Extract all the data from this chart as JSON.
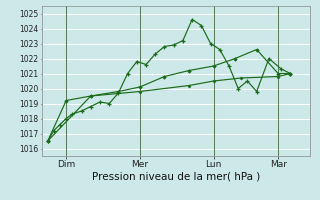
{
  "xlabel": "Pression niveau de la mer( hPa )",
  "bg_color": "#cce8e8",
  "grid_color": "#ffffff",
  "line_color": "#1a6b1a",
  "ylim": [
    1015.5,
    1025.5
  ],
  "yticks": [
    1016,
    1017,
    1018,
    1019,
    1020,
    1021,
    1022,
    1023,
    1024,
    1025
  ],
  "day_labels": [
    "Dim",
    "Mer",
    "Lun",
    "Mar"
  ],
  "day_positions": [
    16,
    64,
    112,
    154
  ],
  "xlim": [
    0,
    175
  ],
  "series1_x": [
    4,
    8,
    12,
    16,
    20,
    26,
    32,
    38,
    44,
    50,
    56,
    62,
    68,
    74,
    80,
    86,
    92,
    98,
    104,
    110,
    116,
    122,
    128,
    134,
    140,
    148,
    156,
    162
  ],
  "series1_y": [
    1016.5,
    1017.2,
    1017.6,
    1018.0,
    1018.3,
    1018.5,
    1018.8,
    1019.1,
    1019.0,
    1019.7,
    1021.0,
    1021.8,
    1021.6,
    1022.3,
    1022.8,
    1022.9,
    1023.2,
    1024.6,
    1024.2,
    1023.0,
    1022.6,
    1021.5,
    1020.0,
    1020.5,
    1019.8,
    1022.0,
    1021.3,
    1021.0
  ],
  "series2_x": [
    4,
    16,
    32,
    50,
    64,
    80,
    96,
    112,
    126,
    140,
    154,
    162
  ],
  "series2_y": [
    1016.5,
    1019.2,
    1019.5,
    1019.8,
    1020.1,
    1020.8,
    1021.2,
    1021.5,
    1022.0,
    1022.6,
    1021.0,
    1021.0
  ],
  "series3_x": [
    4,
    32,
    64,
    96,
    112,
    130,
    154,
    162
  ],
  "series3_y": [
    1016.5,
    1019.5,
    1019.8,
    1020.2,
    1020.5,
    1020.7,
    1020.8,
    1021.0
  ],
  "vline_color": "#557755",
  "vline_positions": [
    16,
    64,
    112,
    154
  ],
  "xlabel_fontsize": 7.5,
  "ytick_fontsize": 5.5,
  "xtick_fontsize": 6.5
}
